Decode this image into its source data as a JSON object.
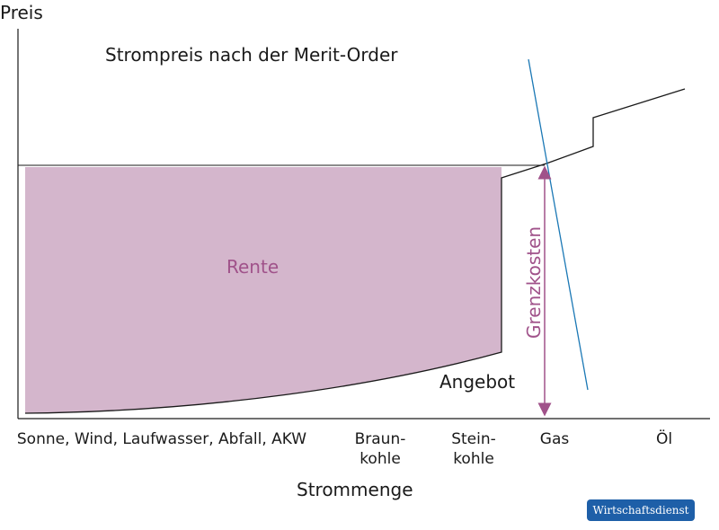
{
  "chart_data": {
    "type": "area",
    "title": "Strompreis nach der Merit-Order",
    "xlabel": "Strommenge",
    "ylabel": "Preis",
    "categories": [
      "Sonne, Wind, Laufwasser, Abfall, AKW",
      "Braun-\nkohle",
      "Stein-\nkohle",
      "Gas",
      "Öl"
    ],
    "annotations": {
      "area_label": "Rente",
      "supply_label": "Angebot",
      "marginal_cost_label": "Grenzkosten"
    },
    "colors": {
      "area": "#d4b6cc",
      "supply": "#1a1a1a",
      "demand": "#1b78b5",
      "arrow": "#a0528a",
      "area_text": "#a0528a"
    }
  },
  "badge": {
    "label": "Wirtschaftsdienst"
  }
}
